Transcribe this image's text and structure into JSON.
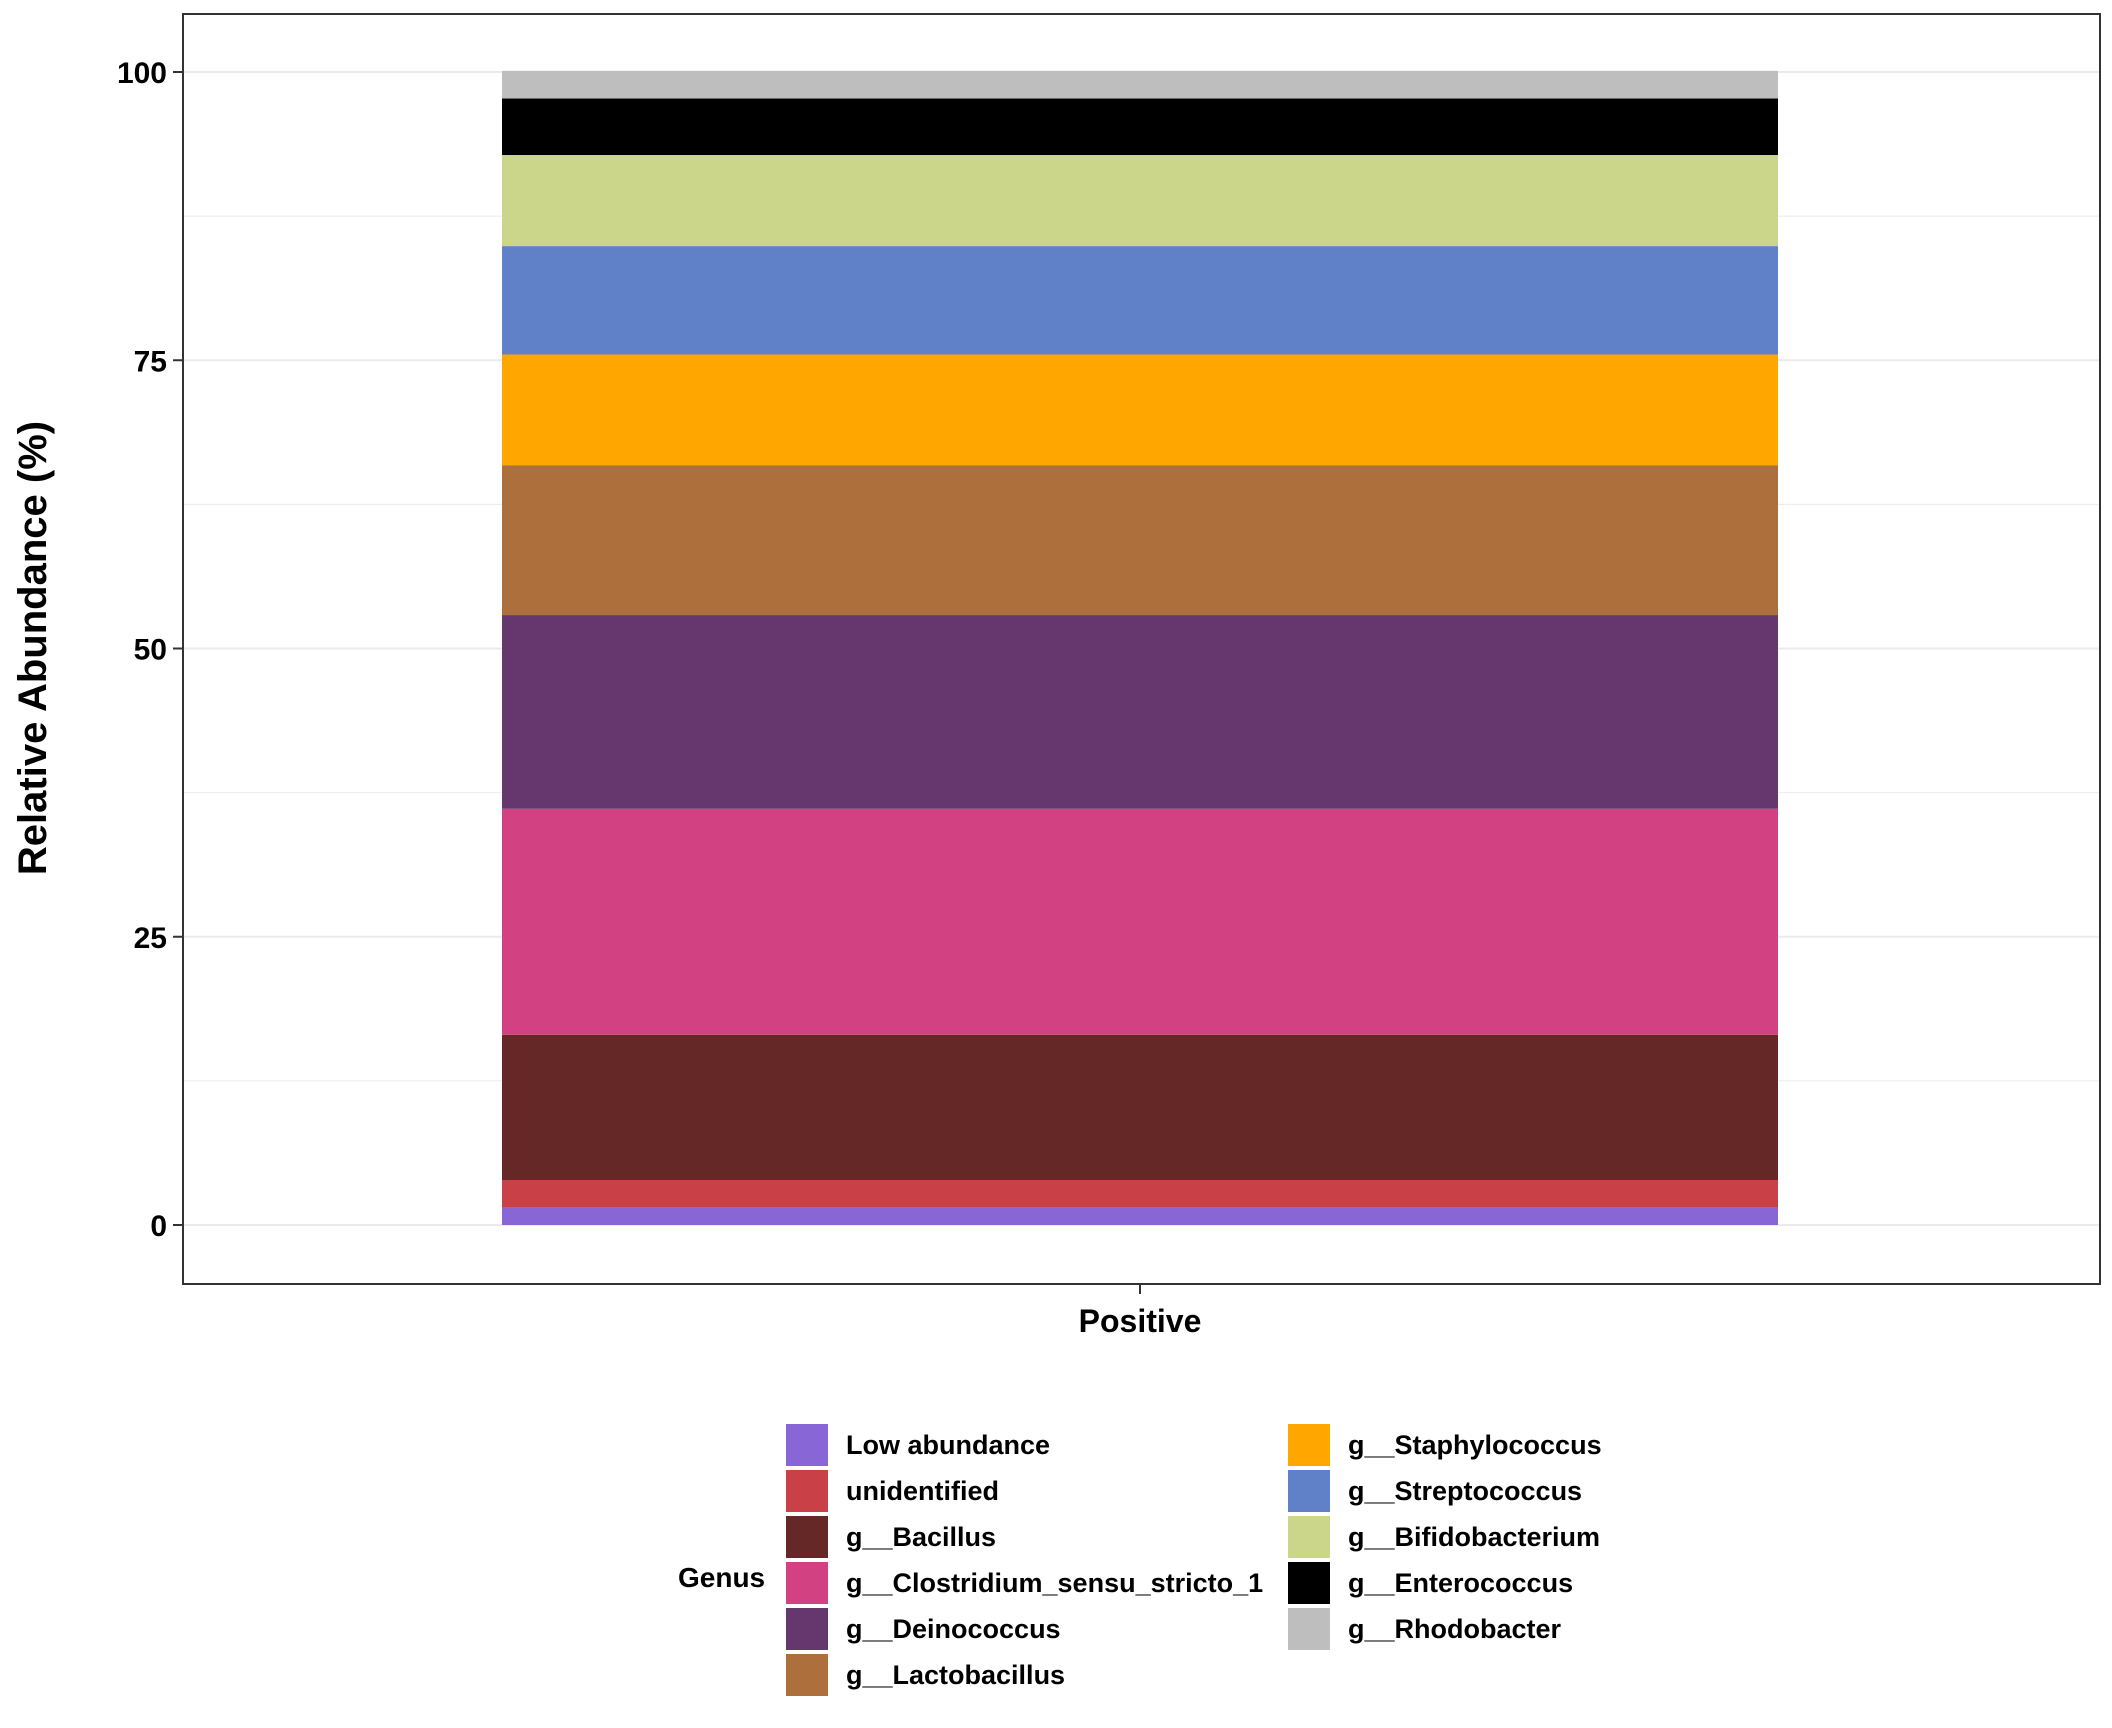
{
  "chart_data": {
    "type": "bar",
    "stacked": true,
    "categories": [
      "Positive"
    ],
    "ylabel": "Relative Abundance (%)",
    "xlabel": "",
    "ylim": [
      -5,
      105
    ],
    "yticks": [
      0,
      25,
      50,
      75,
      100
    ],
    "grid": true,
    "legend_position": "bottom",
    "legend_title": "Genus",
    "series": [
      {
        "name": "Low abundance",
        "color": "#8866D6",
        "values": [
          1.5
        ]
      },
      {
        "name": "unidentified",
        "color": "#C94046",
        "values": [
          2.4
        ]
      },
      {
        "name": "g__Bacillus",
        "color": "#652826",
        "values": [
          12.6
        ]
      },
      {
        "name": "g__Clostridium_sensu_stricto_1",
        "color": "#D24283",
        "values": [
          19.6
        ]
      },
      {
        "name": "g__Deinococcus",
        "color": "#66366E",
        "values": [
          16.8
        ]
      },
      {
        "name": "g__Lactobacillus",
        "color": "#AD6F3C",
        "values": [
          13.0
        ]
      },
      {
        "name": "g__Staphylococcus",
        "color": "#FFA600",
        "values": [
          9.6
        ]
      },
      {
        "name": "g__Streptococcus",
        "color": "#6080C7",
        "values": [
          9.4
        ]
      },
      {
        "name": "g__Bifidobacterium",
        "color": "#CBD68A",
        "values": [
          7.9
        ]
      },
      {
        "name": "g__Enterococcus",
        "color": "#000000",
        "values": [
          4.9
        ]
      },
      {
        "name": "g__Rhodobacter",
        "color": "#BEBEBE",
        "values": [
          2.4
        ]
      }
    ]
  }
}
